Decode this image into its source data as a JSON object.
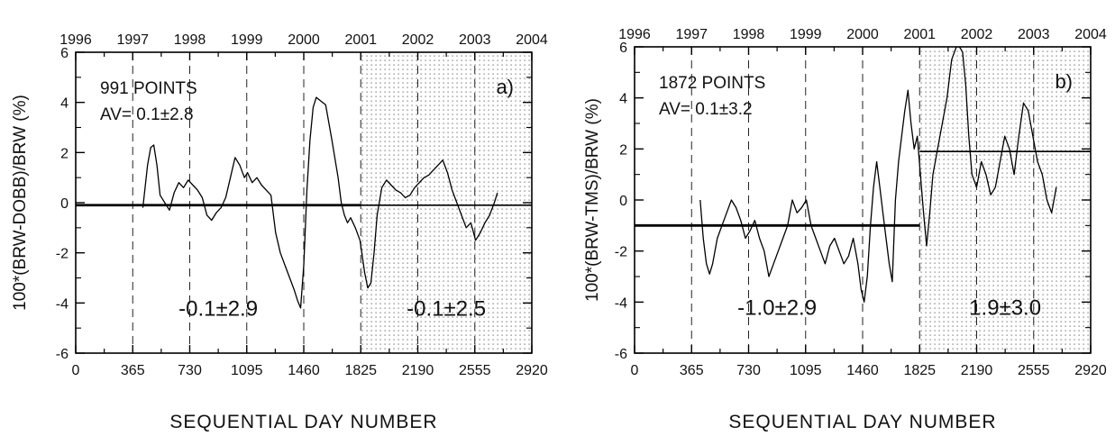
{
  "chart_data": [
    {
      "type": "line",
      "panel_label": "a)",
      "ylabel": "100*(BRW-DOBB)/BRW (%)",
      "xlabel": "SEQUENTIAL DAY NUMBER",
      "xlim": [
        0,
        2920
      ],
      "ylim": [
        -6,
        6
      ],
      "x_ticks": [
        "0",
        "365",
        "730",
        "1095",
        "1460",
        "1825",
        "2190",
        "2555",
        "2920"
      ],
      "y_ticks": [
        "6",
        "4",
        "2",
        "0",
        "-2",
        "-4",
        "-6"
      ],
      "top_axis_years": [
        "1996",
        "1997",
        "1998",
        "1999",
        "2000",
        "2001",
        "2002",
        "2003",
        "2004"
      ],
      "shaded_from": 1825,
      "points_text": "991 POINTS",
      "avg_text": "AV= 0.1±2.8",
      "segment_means": [
        {
          "x_from": 0,
          "x_to": 1825,
          "value": -0.1,
          "label": "-0.1±2.9"
        },
        {
          "x_from": 1825,
          "x_to": 2920,
          "value": -0.1,
          "label": "-0.1±2.5"
        }
      ],
      "series": [
        {
          "x": [
            430,
            460,
            480,
            500,
            520,
            540,
            570,
            600,
            630,
            660,
            690,
            720,
            750,
            780,
            810,
            840,
            870,
            900,
            930,
            960,
            990,
            1020,
            1050,
            1080,
            1100,
            1130,
            1160,
            1190,
            1220,
            1250,
            1280,
            1310,
            1340,
            1370,
            1400,
            1420,
            1440,
            1460,
            1480,
            1500,
            1520,
            1540,
            1560,
            1600,
            1640,
            1680,
            1700,
            1720,
            1740,
            1760,
            1790,
            1820,
            1850,
            1870,
            1890,
            1910,
            1930,
            1960,
            1990,
            2020,
            2050,
            2080,
            2110,
            2140,
            2170,
            2200,
            2230,
            2260,
            2290,
            2320,
            2350,
            2380,
            2410,
            2440,
            2470,
            2500,
            2530,
            2560,
            2590,
            2620,
            2650,
            2680,
            2700
          ],
          "y": [
            -0.2,
            1.5,
            2.2,
            2.3,
            1.5,
            0.3,
            0.0,
            -0.3,
            0.4,
            0.8,
            0.6,
            0.9,
            0.7,
            0.5,
            0.2,
            -0.5,
            -0.7,
            -0.4,
            -0.2,
            0.2,
            1.0,
            1.8,
            1.5,
            1.0,
            1.2,
            0.8,
            1.0,
            0.7,
            0.5,
            0.3,
            -1.2,
            -2.0,
            -2.5,
            -3.0,
            -3.5,
            -3.9,
            -4.2,
            -2.5,
            0.5,
            2.5,
            3.8,
            4.2,
            4.1,
            3.9,
            2.5,
            1.0,
            0.0,
            -0.5,
            -0.8,
            -0.6,
            -1.0,
            -1.5,
            -2.8,
            -3.4,
            -3.2,
            -2.0,
            -0.5,
            0.6,
            0.9,
            0.7,
            0.5,
            0.4,
            0.2,
            0.3,
            0.6,
            0.8,
            1.0,
            1.1,
            1.3,
            1.5,
            1.7,
            1.2,
            0.5,
            0.0,
            -0.5,
            -1.0,
            -0.8,
            -1.5,
            -1.2,
            -0.8,
            -0.5,
            0.0,
            0.4
          ]
        }
      ]
    },
    {
      "type": "line",
      "panel_label": "b)",
      "ylabel": "100*(BRW-TMS)/BRW (%)",
      "xlabel": "SEQUENTIAL DAY NUMBER",
      "xlim": [
        0,
        2920
      ],
      "ylim": [
        -6,
        6
      ],
      "x_ticks": [
        "0",
        "365",
        "730",
        "1095",
        "1460",
        "1825",
        "2190",
        "2555",
        "2920"
      ],
      "y_ticks": [
        "6",
        "4",
        "2",
        "0",
        "-2",
        "-4",
        "-6"
      ],
      "top_axis_years": [
        "1996",
        "1997",
        "1998",
        "1999",
        "2000",
        "2001",
        "2002",
        "2003",
        "2004"
      ],
      "shaded_from": 1825,
      "points_text": "1872 POINTS",
      "avg_text": "AV= 0.1±3.2",
      "segment_means": [
        {
          "x_from": 0,
          "x_to": 1825,
          "value": -1.0,
          "label": "-1.0±2.9"
        },
        {
          "x_from": 1825,
          "x_to": 2920,
          "value": 1.9,
          "label": "1.9±3.0"
        }
      ],
      "series": [
        {
          "x": [
            420,
            440,
            460,
            480,
            500,
            530,
            560,
            590,
            620,
            650,
            680,
            710,
            740,
            770,
            800,
            830,
            860,
            890,
            920,
            950,
            980,
            1010,
            1040,
            1070,
            1100,
            1130,
            1160,
            1190,
            1220,
            1250,
            1280,
            1310,
            1340,
            1370,
            1400,
            1430,
            1450,
            1470,
            1490,
            1510,
            1530,
            1550,
            1570,
            1590,
            1610,
            1630,
            1650,
            1670,
            1690,
            1710,
            1730,
            1750,
            1770,
            1790,
            1810,
            1830,
            1850,
            1870,
            1890,
            1910,
            1940,
            1970,
            2000,
            2030,
            2060,
            2080,
            2100,
            2120,
            2140,
            2160,
            2190,
            2220,
            2250,
            2280,
            2310,
            2340,
            2370,
            2400,
            2430,
            2460,
            2490,
            2520,
            2550,
            2580,
            2610,
            2640,
            2670,
            2700
          ],
          "y": [
            0.0,
            -1.5,
            -2.5,
            -2.9,
            -2.5,
            -1.5,
            -1.0,
            -0.5,
            0.0,
            -0.3,
            -0.8,
            -1.5,
            -1.2,
            -0.8,
            -1.5,
            -2.0,
            -3.0,
            -2.5,
            -2.0,
            -1.5,
            -1.0,
            0.0,
            -0.5,
            -0.3,
            0.0,
            -1.0,
            -1.5,
            -2.0,
            -2.5,
            -1.8,
            -1.5,
            -2.0,
            -2.5,
            -2.2,
            -1.5,
            -2.5,
            -3.5,
            -4.0,
            -3.0,
            -1.0,
            0.5,
            1.5,
            0.5,
            -0.5,
            -1.5,
            -2.5,
            -3.2,
            0.0,
            1.5,
            2.5,
            3.5,
            4.3,
            3.0,
            2.0,
            2.5,
            1.0,
            -0.5,
            -1.8,
            -0.5,
            1.0,
            2.0,
            3.0,
            4.0,
            5.5,
            6.0,
            6.0,
            5.8,
            4.5,
            2.5,
            1.0,
            0.5,
            1.5,
            1.0,
            0.2,
            0.5,
            1.5,
            2.5,
            2.0,
            1.0,
            2.5,
            3.8,
            3.5,
            2.5,
            1.5,
            1.0,
            0.0,
            -0.5,
            0.5
          ]
        }
      ]
    }
  ]
}
